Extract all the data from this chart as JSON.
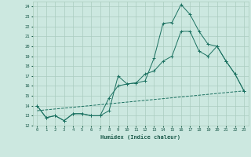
{
  "xlabel": "Humidex (Indice chaleur)",
  "bg_color": "#cce8e0",
  "grid_color": "#aaccc0",
  "line_color": "#1a7060",
  "xlim": [
    -0.5,
    23.5
  ],
  "ylim": [
    12,
    24.5
  ],
  "yticks": [
    12,
    13,
    14,
    15,
    16,
    17,
    18,
    19,
    20,
    21,
    22,
    23,
    24
  ],
  "xticks": [
    0,
    1,
    2,
    3,
    4,
    5,
    6,
    7,
    8,
    9,
    10,
    11,
    12,
    13,
    14,
    15,
    16,
    17,
    18,
    19,
    20,
    21,
    22,
    23
  ],
  "line1_x": [
    0,
    1,
    2,
    3,
    4,
    5,
    6,
    7,
    8,
    9,
    10,
    11,
    12,
    13,
    14,
    15,
    16,
    17,
    18,
    19,
    20,
    21,
    22,
    23
  ],
  "line1_y": [
    14.0,
    12.8,
    13.0,
    12.5,
    13.2,
    13.2,
    13.0,
    13.0,
    13.5,
    17.0,
    16.2,
    16.3,
    16.5,
    18.8,
    22.3,
    22.4,
    24.2,
    23.2,
    21.5,
    20.2,
    20.0,
    18.5,
    17.2,
    15.5
  ],
  "line2_x": [
    0,
    1,
    2,
    3,
    4,
    5,
    6,
    7,
    8,
    9,
    10,
    11,
    12,
    13,
    14,
    15,
    16,
    17,
    18,
    19,
    20,
    21,
    22,
    23
  ],
  "line2_y": [
    14.0,
    12.8,
    13.0,
    12.5,
    13.2,
    13.2,
    13.0,
    13.0,
    14.8,
    16.0,
    16.2,
    16.3,
    17.2,
    17.5,
    18.5,
    19.0,
    21.5,
    21.5,
    19.5,
    19.0,
    20.0,
    18.5,
    17.2,
    15.5
  ],
  "line3_x": [
    0,
    23
  ],
  "line3_y": [
    13.5,
    15.5
  ]
}
